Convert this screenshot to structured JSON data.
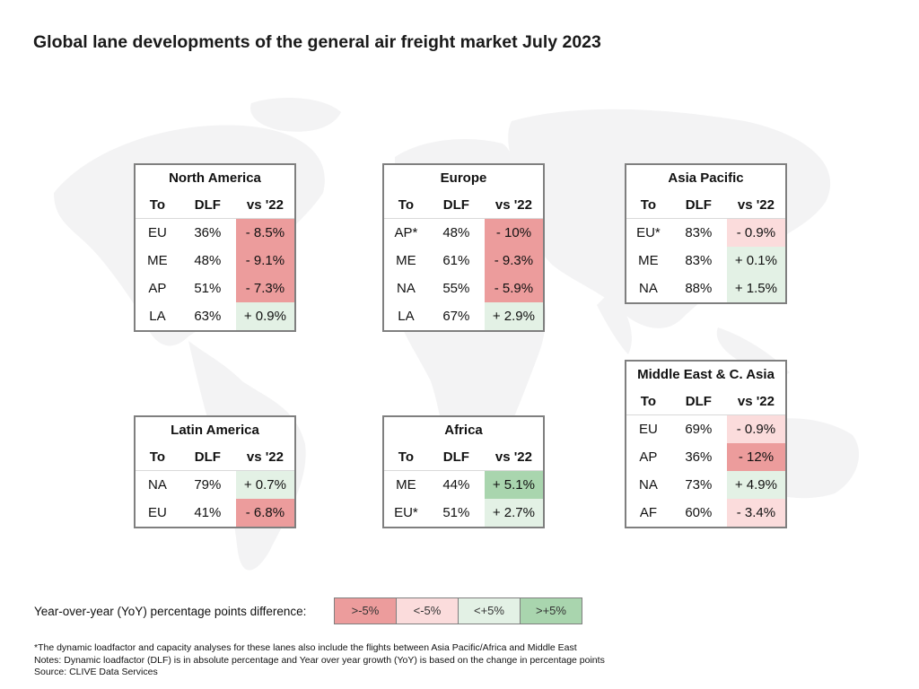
{
  "title": "Global lane developments of the general air freight market July 2023",
  "colors": {
    "strong_negative": "#ec9c9c",
    "negative": "#fbdcdc",
    "positive": "#e3f1e5",
    "strong_positive": "#a9d5ae"
  },
  "column_headers": {
    "to": "To",
    "dlf": "DLF",
    "vs": "vs '22"
  },
  "regions": [
    {
      "name": "North America",
      "rows": [
        {
          "to": "EU",
          "dlf": "36%",
          "vs": "- 8.5%",
          "level": "strong_negative"
        },
        {
          "to": "ME",
          "dlf": "48%",
          "vs": "- 9.1%",
          "level": "strong_negative"
        },
        {
          "to": "AP",
          "dlf": "51%",
          "vs": "- 7.3%",
          "level": "strong_negative"
        },
        {
          "to": "LA",
          "dlf": "63%",
          "vs": "+ 0.9%",
          "level": "positive"
        }
      ]
    },
    {
      "name": "Europe",
      "rows": [
        {
          "to": "AP*",
          "dlf": "48%",
          "vs": "- 10%",
          "level": "strong_negative"
        },
        {
          "to": "ME",
          "dlf": "61%",
          "vs": "- 9.3%",
          "level": "strong_negative"
        },
        {
          "to": "NA",
          "dlf": "55%",
          "vs": "- 5.9%",
          "level": "strong_negative"
        },
        {
          "to": "LA",
          "dlf": "67%",
          "vs": "+ 2.9%",
          "level": "positive"
        }
      ]
    },
    {
      "name": "Asia Pacific",
      "rows": [
        {
          "to": "EU*",
          "dlf": "83%",
          "vs": "- 0.9%",
          "level": "negative"
        },
        {
          "to": "ME",
          "dlf": "83%",
          "vs": "+ 0.1%",
          "level": "positive"
        },
        {
          "to": "NA",
          "dlf": "88%",
          "vs": "+ 1.5%",
          "level": "positive"
        }
      ]
    },
    {
      "name": "Latin America",
      "rows": [
        {
          "to": "NA",
          "dlf": "79%",
          "vs": "+ 0.7%",
          "level": "positive"
        },
        {
          "to": "EU",
          "dlf": "41%",
          "vs": "- 6.8%",
          "level": "strong_negative"
        }
      ]
    },
    {
      "name": "Africa",
      "rows": [
        {
          "to": "ME",
          "dlf": "44%",
          "vs": "+ 5.1%",
          "level": "strong_positive"
        },
        {
          "to": "EU*",
          "dlf": "51%",
          "vs": "+ 2.7%",
          "level": "positive"
        }
      ]
    },
    {
      "name": "Middle East & C. Asia",
      "rows": [
        {
          "to": "EU",
          "dlf": "69%",
          "vs": "- 0.9%",
          "level": "negative"
        },
        {
          "to": "AP",
          "dlf": "36%",
          "vs": "- 12%",
          "level": "strong_negative"
        },
        {
          "to": "NA",
          "dlf": "73%",
          "vs": "+ 4.9%",
          "level": "positive"
        },
        {
          "to": "AF",
          "dlf": "60%",
          "vs": "- 3.4%",
          "level": "negative"
        }
      ]
    }
  ],
  "legend": {
    "label": "Year-over-year (YoY) percentage points difference:",
    "items": [
      {
        "text": ">-5%",
        "level": "strong_negative"
      },
      {
        "text": "<-5%",
        "level": "negative"
      },
      {
        "text": "<+5%",
        "level": "positive"
      },
      {
        "text": ">+5%",
        "level": "strong_positive"
      }
    ]
  },
  "footnotes": [
    "*The dynamic loadfactor and capacity analyses for these lanes also include the flights between Asia Pacific/Africa and Middle East",
    "Notes: Dynamic loadfactor (DLF) is in absolute percentage and Year over year growth (YoY) is based on the change in percentage points",
    "Source: CLIVE Data Services"
  ]
}
